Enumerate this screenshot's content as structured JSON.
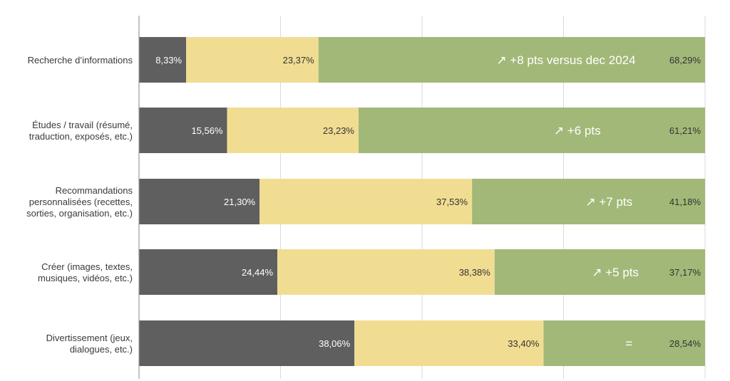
{
  "colors": {
    "dark": "#5f5f5f",
    "yellow": "#f1dd92",
    "green": "#a2b878",
    "grid": "#d9d9d9"
  },
  "chart_data": {
    "type": "bar",
    "orientation": "horizontal",
    "stacked": true,
    "normalized": true,
    "xlim": [
      0,
      100
    ],
    "grid": true,
    "categories": [
      "Recherche d’informations",
      "Études / travail (résumé, traduction, exposés, etc.)",
      "Recommandations personnalisées (recettes, sorties, organisation, etc.)",
      "Créer (images, textes, musiques, vidéos, etc.)",
      "Divertissement (jeux, dialogues, etc.)"
    ],
    "category_lines": [
      [
        "Recherche d’informations"
      ],
      [
        "Études / travail (résumé,",
        "traduction, exposés, etc.)"
      ],
      [
        "Recommandations",
        "personnalisées (recettes,",
        "sorties, organisation, etc.)"
      ],
      [
        "Créer (images, textes,",
        "musiques, vidéos, etc.)"
      ],
      [
        "Divertissement (jeux,",
        "dialogues, etc.)"
      ]
    ],
    "series": [
      {
        "values": [
          8.33,
          15.56,
          21.3,
          24.44,
          38.06
        ],
        "labels": [
          "8,33%",
          "15,56%",
          "21,30%",
          "24,44%",
          "38,06%"
        ]
      },
      {
        "values": [
          23.37,
          23.23,
          37.53,
          38.38,
          33.4
        ],
        "labels": [
          "23,37%",
          "23,23%",
          "37,53%",
          "38,38%",
          "33,40%"
        ]
      },
      {
        "values": [
          68.29,
          61.21,
          41.18,
          37.17,
          28.54
        ],
        "labels": [
          "68,29%",
          "61,21%",
          "41,18%",
          "37,17%",
          "28,54%"
        ]
      }
    ],
    "annotations": [
      "↗ +8 pts versus dec 2024",
      "↗ +6 pts",
      "↗ +7 pts",
      "↗ +5 pts",
      "="
    ]
  }
}
